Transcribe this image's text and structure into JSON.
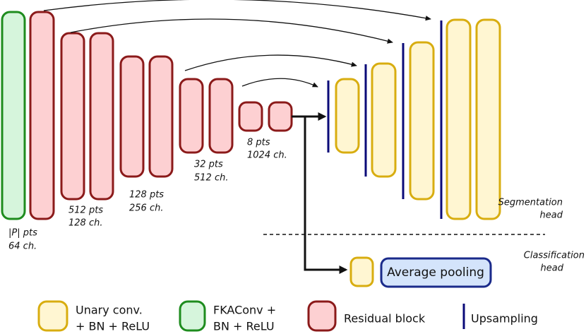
{
  "annotations": [
    [
      "|P| pts",
      "64 ch."
    ],
    [
      "512 pts",
      "128 ch."
    ],
    [
      "128 pts",
      "256 ch."
    ],
    [
      "32 pts",
      "512 ch."
    ],
    [
      "8 pts",
      "1024 ch."
    ]
  ],
  "heads": [
    [
      "Segmentation",
      "head"
    ],
    [
      "Classification",
      "head"
    ]
  ],
  "average_pooling": "Average pooling",
  "legend": [
    [
      "Unary conv.",
      "+ BN + ReLU"
    ],
    [
      "FKAConv +",
      "BN + ReLU"
    ],
    [
      "Residual block"
    ],
    [
      "Upsampling"
    ]
  ]
}
